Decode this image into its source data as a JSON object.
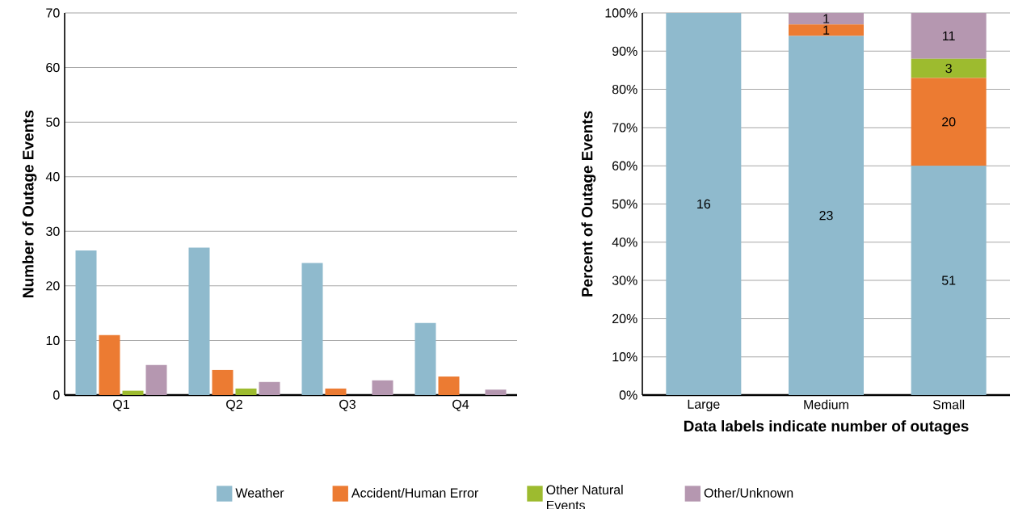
{
  "chart_data": [
    {
      "type": "bar",
      "ylabel": "Number of Outage Events",
      "categories": [
        "Q1",
        "Q2",
        "Q3",
        "Q4"
      ],
      "series": [
        {
          "name": "Weather",
          "color": "#8fbacd",
          "values": [
            26.5,
            27,
            24.2,
            13.2
          ]
        },
        {
          "name": "Accident/Human Error",
          "color": "#ec7b32",
          "values": [
            11,
            4.6,
            1.2,
            3.4
          ]
        },
        {
          "name": "Other Natural Events",
          "color": "#9dbb2f",
          "values": [
            0.8,
            1.2,
            0,
            0
          ]
        },
        {
          "name": "Other/Unknown",
          "color": "#b597b0",
          "values": [
            5.5,
            2.4,
            2.7,
            1
          ]
        }
      ],
      "ylim": [
        0,
        70
      ],
      "yticks": [
        0,
        10,
        20,
        30,
        40,
        50,
        60,
        70
      ],
      "grid": "y",
      "legend": "bottom"
    },
    {
      "type": "bar",
      "stacked": true,
      "ylabel": "Percent of Outage Events",
      "xlabel": "Data labels indicate number of outages",
      "categories": [
        "Large",
        "Medium",
        "Small"
      ],
      "series": [
        {
          "color": "#8fbacd",
          "values": [
            100,
            94,
            60
          ]
        },
        {
          "color": "#ec7b32",
          "values": [
            0,
            3,
            23
          ]
        },
        {
          "color": "#9dbb2f",
          "values": [
            0,
            0,
            5
          ]
        },
        {
          "color": "#b597b0",
          "values": [
            0,
            3,
            12
          ]
        }
      ],
      "annotations": [
        "16",
        "23",
        "1",
        "1",
        "51",
        "20",
        "3",
        "11"
      ],
      "ylim": [
        0,
        100
      ],
      "yticks": [
        {
          "value": 0,
          "label": "0%"
        },
        {
          "value": 10,
          "label": "10%"
        },
        {
          "value": 20,
          "label": "20%"
        },
        {
          "value": 30,
          "label": "30%"
        },
        {
          "value": 40,
          "label": "40%"
        },
        {
          "value": 50,
          "label": "50%"
        },
        {
          "value": 60,
          "label": "60%"
        },
        {
          "value": 70,
          "label": "70%"
        },
        {
          "value": 80,
          "label": "80%"
        },
        {
          "value": 90,
          "label": "90%"
        },
        {
          "value": 100,
          "label": "100%"
        }
      ],
      "grid": "y",
      "legend": false
    }
  ]
}
